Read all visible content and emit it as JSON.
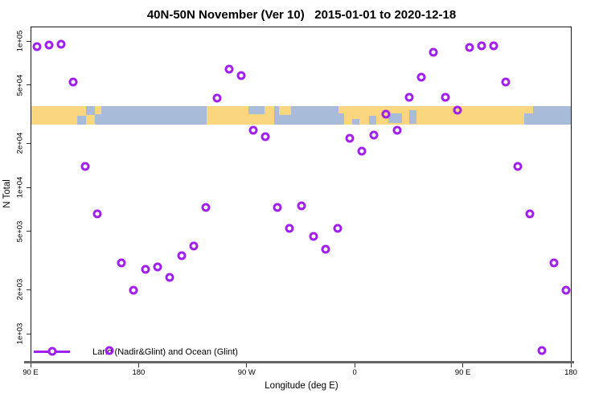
{
  "title": "40N-50N November (Ver 10)   2015-01-01 to 2020-12-18",
  "x_axis": {
    "label": "Longitude (deg E)",
    "ticks": [
      {
        "lon": 90,
        "label": "90 E"
      },
      {
        "lon": 180,
        "label": "180"
      },
      {
        "lon": 270,
        "label": "90 W"
      },
      {
        "lon": 360,
        "label": "0"
      },
      {
        "lon": 450,
        "label": "90 E"
      },
      {
        "lon": 540,
        "label": "180"
      }
    ]
  },
  "y_axis": {
    "label": "N Total",
    "ticks": [
      {
        "value": 100000,
        "label": "1e+05"
      },
      {
        "value": 50000,
        "label": "5e+04"
      },
      {
        "value": 20000,
        "label": "2e+04"
      },
      {
        "value": 10000,
        "label": "1e+04"
      },
      {
        "value": 5000,
        "label": "5e+03"
      },
      {
        "value": 2000,
        "label": "2e+03"
      },
      {
        "value": 1000,
        "label": "1e+03"
      }
    ]
  },
  "legend": {
    "label": "Land (Nadir&Glint) and Ocean (Glint)"
  },
  "colors": {
    "point": "#A020F0",
    "land": "#FAD67E",
    "ocean": "#A8BBD8",
    "frame": "#1A1A1A",
    "axis_line": "#666666",
    "tick": "#333333"
  },
  "chart_data": {
    "type": "scatter",
    "title": "40N-50N November (Ver 10)   2015-01-01 to 2020-12-18",
    "xlabel": "Longitude (deg E)",
    "ylabel": "N Total",
    "x_axis_note": "axis runs from 90E eastward through 180, 90W, 0, 90E to 180 (90 to 540 deg E continuous)",
    "xlim": [
      90,
      540
    ],
    "y_scale": "log10",
    "ylim": [
      640,
      125000
    ],
    "grid": false,
    "legend_position": "bottom-left inside plot",
    "marker": "open-circle",
    "series_name": "Land (Nadir&Glint) and Ocean (Glint)",
    "points": [
      {
        "lon": 95,
        "n": 93000
      },
      {
        "lon": 105,
        "n": 95000
      },
      {
        "lon": 115,
        "n": 96000
      },
      {
        "lon": 125,
        "n": 53000
      },
      {
        "lon": 135,
        "n": 14000
      },
      {
        "lon": 145,
        "n": 6700
      },
      {
        "lon": 155,
        "n": 780
      },
      {
        "lon": 165,
        "n": 3100
      },
      {
        "lon": 175,
        "n": 2000
      },
      {
        "lon": 185,
        "n": 2800
      },
      {
        "lon": 195,
        "n": 2900
      },
      {
        "lon": 205,
        "n": 2450
      },
      {
        "lon": 215,
        "n": 3450
      },
      {
        "lon": 225,
        "n": 4000
      },
      {
        "lon": 235,
        "n": 7400
      },
      {
        "lon": 245,
        "n": 41000
      },
      {
        "lon": 255,
        "n": 65000
      },
      {
        "lon": 265,
        "n": 59000
      },
      {
        "lon": 275,
        "n": 25000
      },
      {
        "lon": 285,
        "n": 22500
      },
      {
        "lon": 295,
        "n": 7400
      },
      {
        "lon": 305,
        "n": 5300
      },
      {
        "lon": 315,
        "n": 7600
      },
      {
        "lon": 325,
        "n": 4700
      },
      {
        "lon": 335,
        "n": 3800
      },
      {
        "lon": 345,
        "n": 5300
      },
      {
        "lon": 355,
        "n": 22000
      },
      {
        "lon": 365,
        "n": 18000
      },
      {
        "lon": 375,
        "n": 23000
      },
      {
        "lon": 385,
        "n": 32000
      },
      {
        "lon": 395,
        "n": 25000
      },
      {
        "lon": 405,
        "n": 42000
      },
      {
        "lon": 415,
        "n": 57000
      },
      {
        "lon": 425,
        "n": 85000
      },
      {
        "lon": 435,
        "n": 42000
      },
      {
        "lon": 445,
        "n": 34000
      },
      {
        "lon": 455,
        "n": 92000
      },
      {
        "lon": 465,
        "n": 94000
      },
      {
        "lon": 475,
        "n": 94000
      },
      {
        "lon": 485,
        "n": 53000
      },
      {
        "lon": 495,
        "n": 14000
      },
      {
        "lon": 505,
        "n": 6700
      },
      {
        "lon": 515,
        "n": 780
      },
      {
        "lon": 525,
        "n": 3100
      },
      {
        "lon": 535,
        "n": 2000
      }
    ]
  },
  "map_band": {
    "description": "horizontal strip across plot showing 40N-50N land (orange) and ocean (blue)",
    "land_segments": [
      {
        "lon": [
          90,
          135.5
        ],
        "frac": [
          0,
          1
        ]
      },
      {
        "lon": [
          135.5,
          143
        ],
        "frac": [
          0.5,
          1
        ]
      },
      {
        "lon": [
          143,
          148.5
        ],
        "frac": [
          0,
          0.45
        ]
      },
      {
        "lon": [
          236,
          292
        ],
        "frac": [
          0,
          1
        ]
      },
      {
        "lon": [
          296,
          306
        ],
        "frac": [
          0,
          0.5
        ]
      },
      {
        "lon": [
          346,
          350.5
        ],
        "frac": [
          0,
          0.4
        ]
      },
      {
        "lon": [
          350.5,
          500.5
        ],
        "frac": [
          0,
          1
        ]
      },
      {
        "lon": [
          500.5,
          508
        ],
        "frac": [
          0,
          0.4
        ]
      }
    ],
    "water_patches": [
      {
        "lon": [
          128,
          135.5
        ],
        "frac": [
          0.55,
          1
        ]
      },
      {
        "lon": [
          271,
          284
        ],
        "frac": [
          0,
          0.45
        ]
      },
      {
        "lon": [
          357,
          363
        ],
        "frac": [
          0.7,
          1
        ]
      },
      {
        "lon": [
          371,
          377
        ],
        "frac": [
          0.55,
          1
        ]
      },
      {
        "lon": [
          387,
          399
        ],
        "frac": [
          0.4,
          0.9
        ]
      },
      {
        "lon": [
          405,
          411
        ],
        "frac": [
          0.25,
          0.95
        ]
      }
    ]
  }
}
